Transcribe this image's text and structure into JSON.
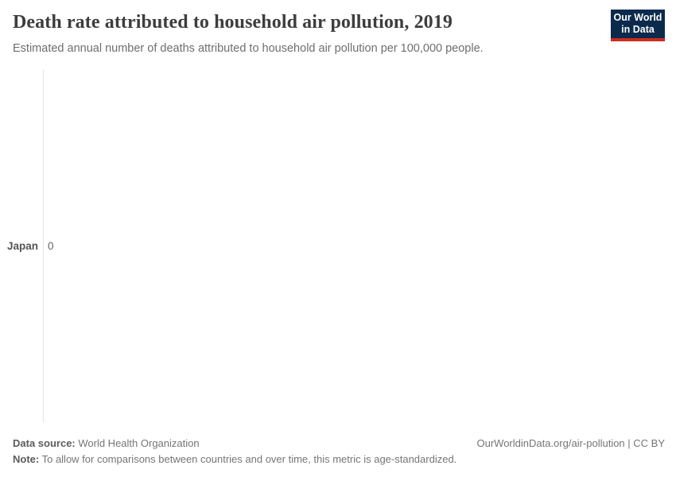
{
  "header": {
    "title": "Death rate attributed to household air pollution, 2019",
    "subtitle": "Estimated annual number of deaths attributed to household air pollution per 100,000 people."
  },
  "logo": {
    "line1": "Our World",
    "line2": "in Data",
    "background_color": "#0b2a4c",
    "accent_color": "#cb2d20"
  },
  "chart_data": {
    "type": "bar",
    "orientation": "horizontal",
    "categories": [
      "Japan"
    ],
    "values": [
      0
    ],
    "value_labels": [
      "0"
    ],
    "title": "Death rate attributed to household air pollution, 2019",
    "subtitle": "Estimated annual number of deaths attributed to household air pollution per 100,000 people.",
    "xlabel": "",
    "ylabel": "",
    "xlim": [
      0,
      0
    ],
    "grid": "off",
    "legend": "none",
    "axis_line_color": "#e3e3e3"
  },
  "footer": {
    "data_source_label": "Data source:",
    "data_source_value": " World Health Organization",
    "note_label": "Note:",
    "note_value": " To allow for comparisons between countries and over time, this metric is age-standardized.",
    "attribution": "OurWorldinData.org/air-pollution | CC BY"
  }
}
